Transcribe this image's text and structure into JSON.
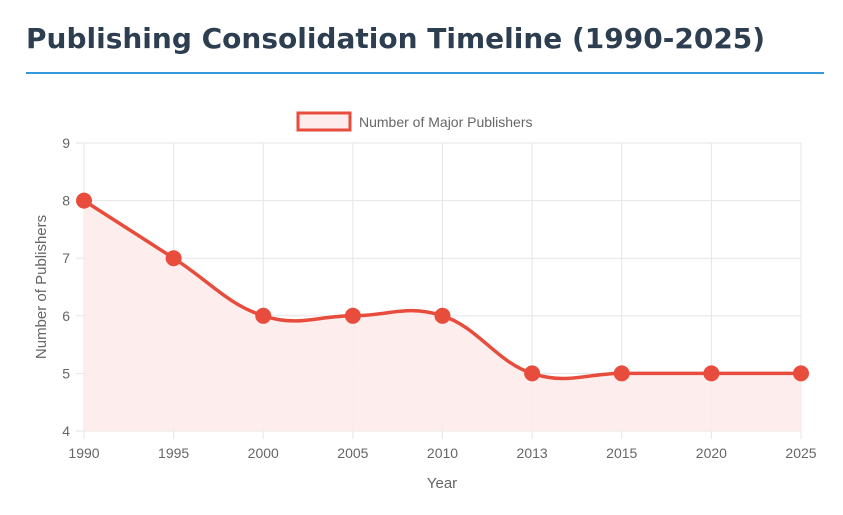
{
  "page": {
    "title": "Publishing Consolidation Timeline (1990-2025)"
  },
  "colors": {
    "title": "#2c3e50",
    "accent_rule": "#3498db",
    "line": "#e74c3c",
    "fill": "#fdeceb",
    "grid": "#e5e5e5",
    "text": "#666666"
  },
  "chart_data": {
    "type": "line",
    "title": "",
    "categories": [
      "1990",
      "1995",
      "2000",
      "2005",
      "2010",
      "2013",
      "2015",
      "2020",
      "2025"
    ],
    "series": [
      {
        "name": "Number of Major Publishers",
        "values": [
          8,
          7,
          6,
          6,
          6,
          5,
          5,
          5,
          5
        ]
      }
    ],
    "xlabel": "Year",
    "ylabel": "Number of Publishers",
    "ylim": [
      4,
      9
    ],
    "yticks": [
      "4",
      "5",
      "6",
      "7",
      "8",
      "9"
    ],
    "grid": true,
    "fill": true,
    "legend": "top-center"
  }
}
